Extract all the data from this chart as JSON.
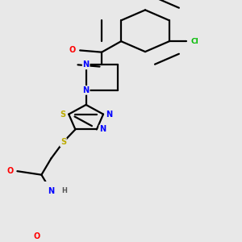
{
  "background_color": "#e8e8e8",
  "bond_color": "#000000",
  "bond_width": 1.6,
  "atom_colors": {
    "N": "#0000ff",
    "O": "#ff0000",
    "S": "#bbaa00",
    "Cl": "#00bb00",
    "C": "#000000",
    "H": "#555555"
  },
  "font_size_atom": 7.0,
  "fig_width": 3.0,
  "fig_height": 3.0,
  "dpi": 100
}
